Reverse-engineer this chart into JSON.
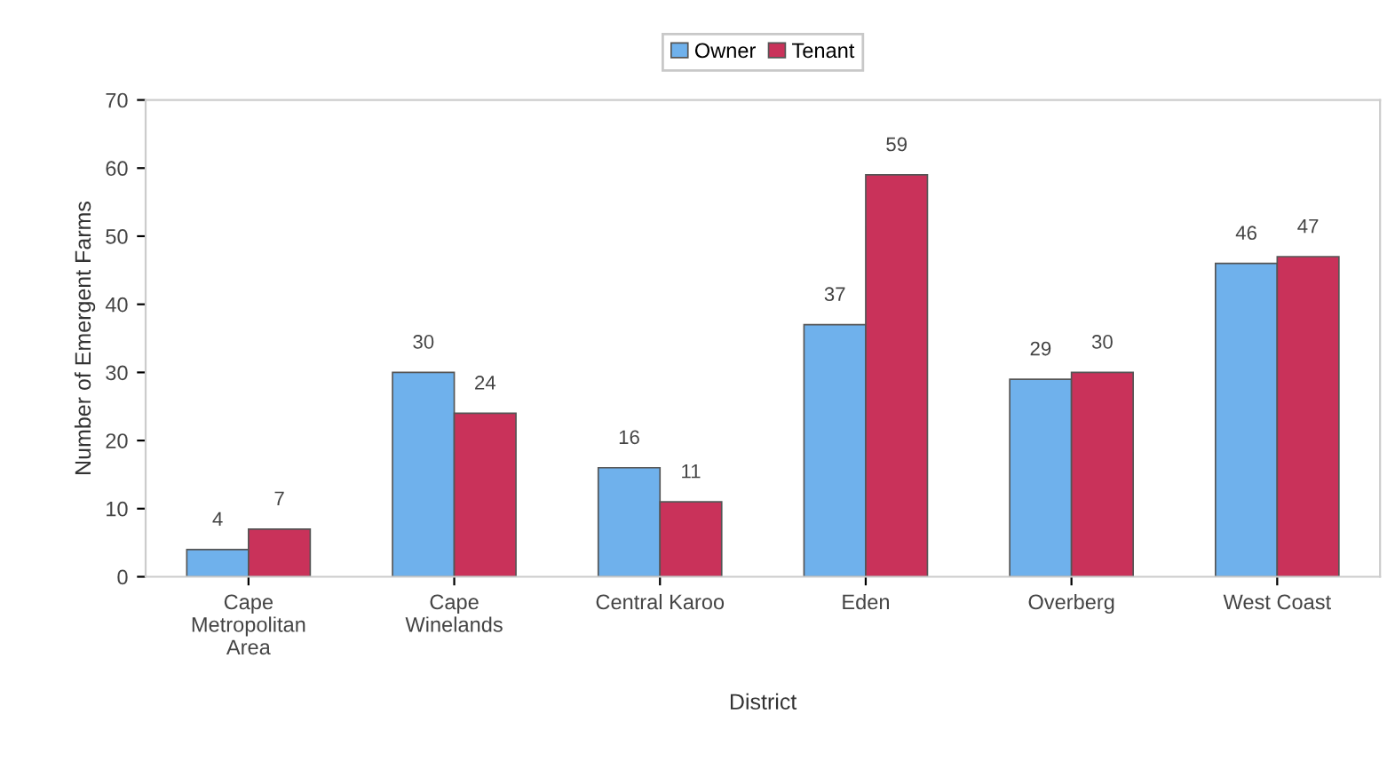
{
  "chart_data": {
    "type": "bar",
    "xlabel": "District",
    "ylabel": "Number of Emergent Farms",
    "categories": [
      "Cape Metropolitan Area",
      "Cape Winelands",
      "Central Karoo",
      "Eden",
      "Overberg",
      "West Coast"
    ],
    "series": [
      {
        "name": "Owner",
        "color": "#6fb1ec",
        "values": [
          4,
          30,
          16,
          37,
          29,
          46
        ]
      },
      {
        "name": "Tenant",
        "color": "#c9325a",
        "values": [
          7,
          24,
          11,
          59,
          30,
          47
        ]
      }
    ],
    "ylim": [
      0,
      70
    ],
    "yticks": [
      0,
      10,
      20,
      30,
      40,
      50,
      60,
      70
    ],
    "grid": false,
    "legend": "top",
    "data_labels": true
  }
}
